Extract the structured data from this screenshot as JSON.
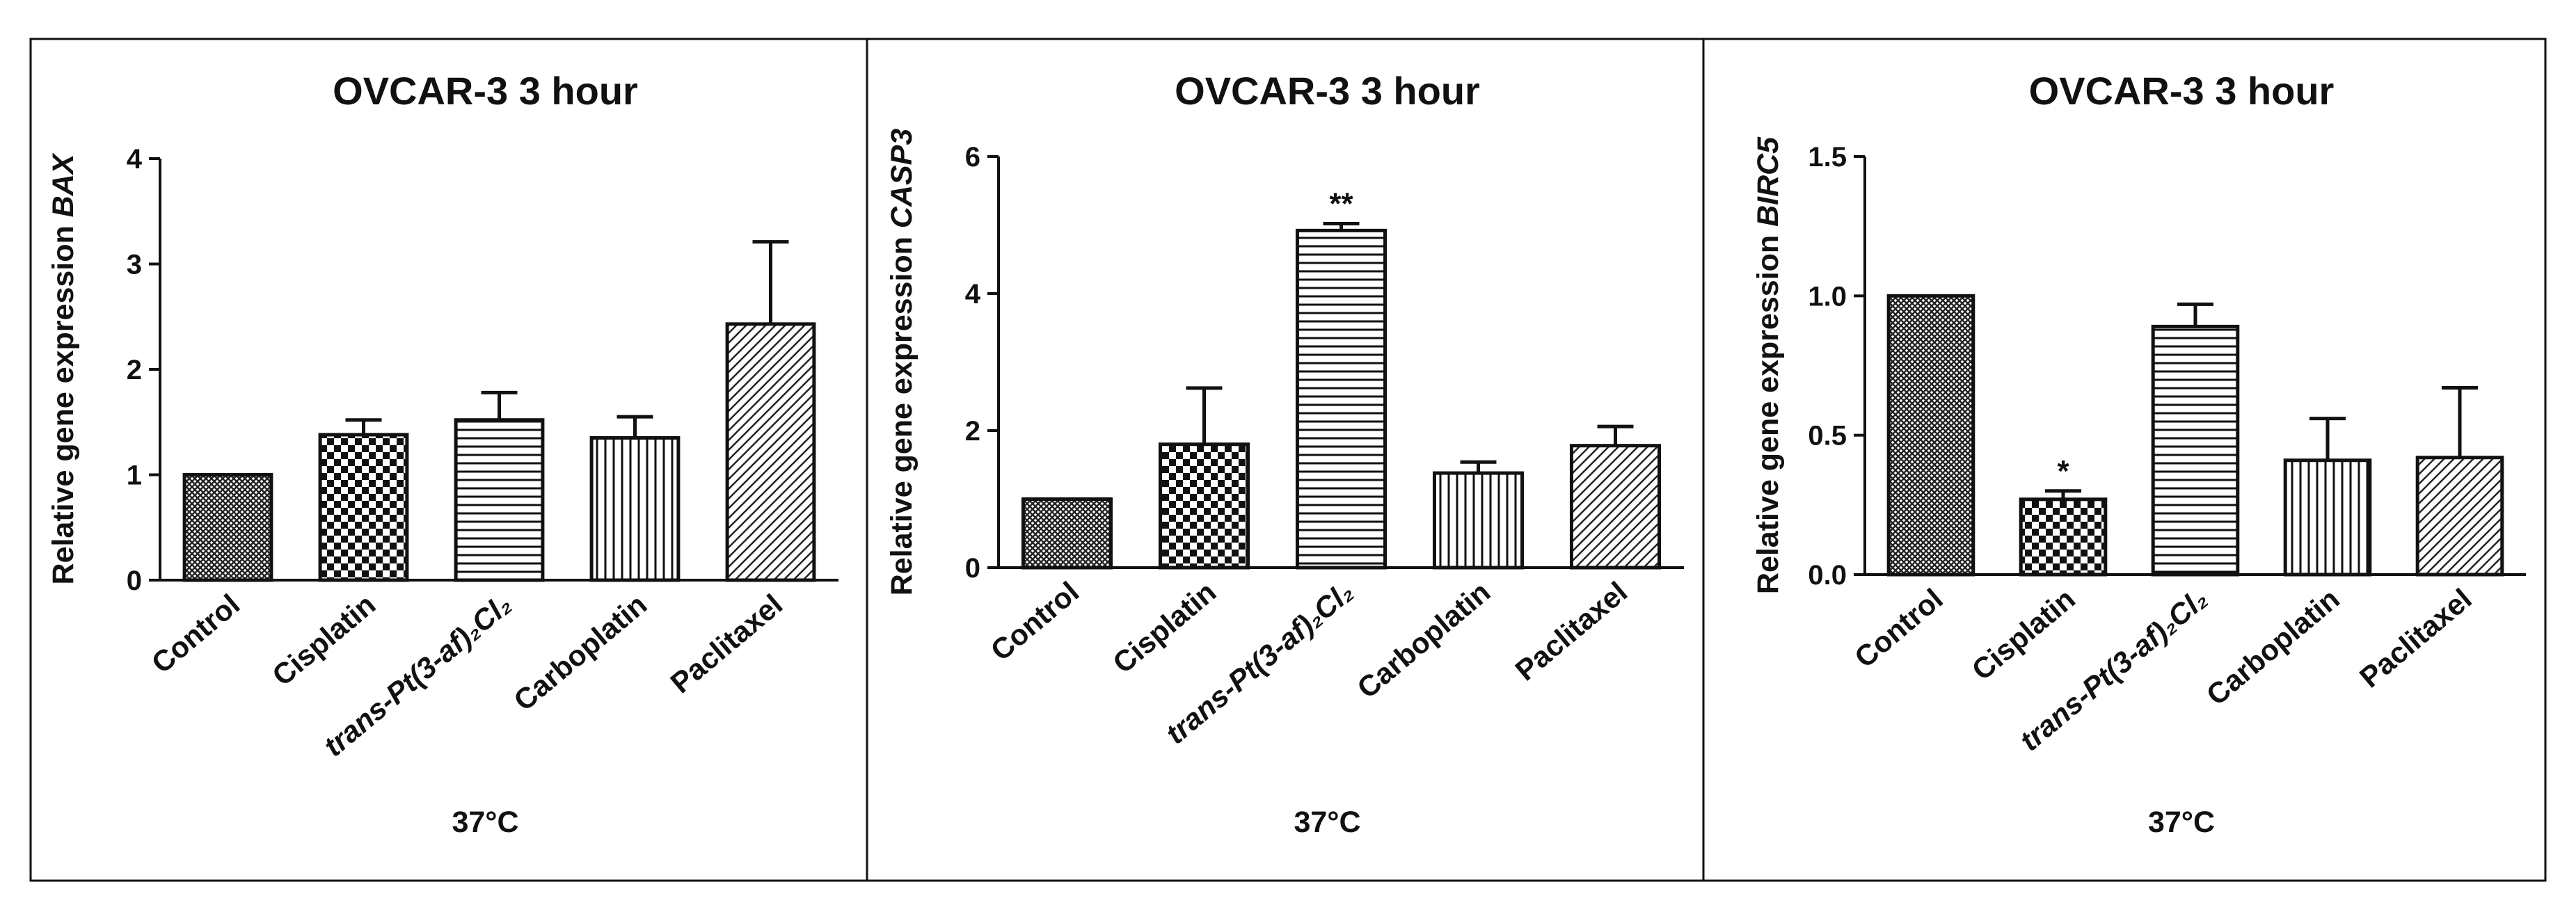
{
  "figure": {
    "xlabel": "37°C"
  },
  "chart_data": [
    {
      "type": "bar",
      "title": "OVCAR-3 3 hour",
      "ylabel_prefix": "Relative gene expression ",
      "gene": "BAX",
      "ylim": [
        0,
        4
      ],
      "yticks": [
        0,
        1,
        2,
        3,
        4
      ],
      "xlabel": "37°C",
      "categories": [
        "Control",
        "Cisplatin",
        "trans-Pt(3-af)₂Cl₂",
        "Carboplatin",
        "Paclitaxel"
      ],
      "values": [
        1.0,
        1.38,
        1.52,
        1.35,
        2.43
      ],
      "errors": [
        0.0,
        0.14,
        0.26,
        0.2,
        0.78
      ],
      "significance": [
        "",
        "",
        "",
        "",
        ""
      ]
    },
    {
      "type": "bar",
      "title": "OVCAR-3 3 hour",
      "ylabel_prefix": "Relative gene expression ",
      "gene": "CASP3",
      "ylim": [
        0,
        6
      ],
      "yticks": [
        0,
        2,
        4,
        6
      ],
      "xlabel": "37°C",
      "categories": [
        "Control",
        "Cisplatin",
        "trans-Pt(3-af)₂Cl₂",
        "Carboplatin",
        "Paclitaxel"
      ],
      "values": [
        1.0,
        1.8,
        4.92,
        1.38,
        1.78
      ],
      "errors": [
        0.0,
        0.82,
        0.1,
        0.16,
        0.28
      ],
      "significance": [
        "",
        "",
        "**",
        "",
        ""
      ]
    },
    {
      "type": "bar",
      "title": "OVCAR-3 3 hour",
      "ylabel_prefix": "Relative gene expression ",
      "gene": "BIRC5",
      "ylim": [
        0,
        1.5
      ],
      "yticks": [
        "0.0",
        "0.5",
        "1.0",
        "1.5"
      ],
      "xlabel": "37°C",
      "categories": [
        "Control",
        "Cisplatin",
        "trans-Pt(3-af)₂Cl₂",
        "Carboplatin",
        "Paclitaxel"
      ],
      "values": [
        1.0,
        0.27,
        0.89,
        0.41,
        0.42
      ],
      "errors": [
        0.0,
        0.03,
        0.08,
        0.15,
        0.25
      ],
      "significance": [
        "",
        "*",
        "",
        "",
        ""
      ]
    }
  ]
}
